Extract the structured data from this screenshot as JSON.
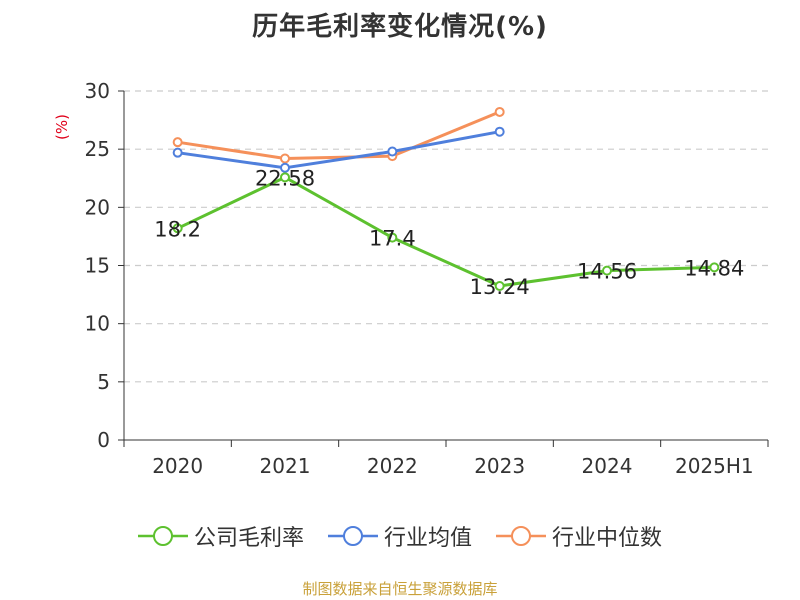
{
  "title": "历年毛利率变化情况(%)",
  "source_note": "制图数据来自恒生聚源数据库",
  "chart_data": {
    "type": "line",
    "title": "历年毛利率变化情况(%)",
    "ylabel": "(%)",
    "xlabel": "",
    "categories": [
      "2020",
      "2021",
      "2022",
      "2023",
      "2024",
      "2025H1"
    ],
    "ylim": [
      0,
      30
    ],
    "yticks": [
      0,
      5,
      10,
      15,
      20,
      25,
      30
    ],
    "grid": true,
    "legend_position": "bottom",
    "series": [
      {
        "name": "公司毛利率",
        "color": "#5dc12f",
        "values": [
          18.2,
          22.58,
          17.4,
          13.24,
          14.56,
          14.84
        ],
        "labels": [
          "18.2",
          "22.58",
          "17.4",
          "13.24",
          "14.56",
          "14.84"
        ]
      },
      {
        "name": "行业均值",
        "color": "#4f7fdc",
        "values": [
          24.7,
          23.4,
          24.8,
          26.5,
          null,
          null
        ],
        "labels": []
      },
      {
        "name": "行业中位数",
        "color": "#f5905a",
        "values": [
          25.6,
          24.2,
          24.4,
          28.2,
          null,
          null
        ],
        "labels": []
      }
    ]
  },
  "colors": {
    "axis": "#333333",
    "grid": "#cccccc",
    "ylabel": "#e0001a",
    "source": "#c9a13a"
  }
}
